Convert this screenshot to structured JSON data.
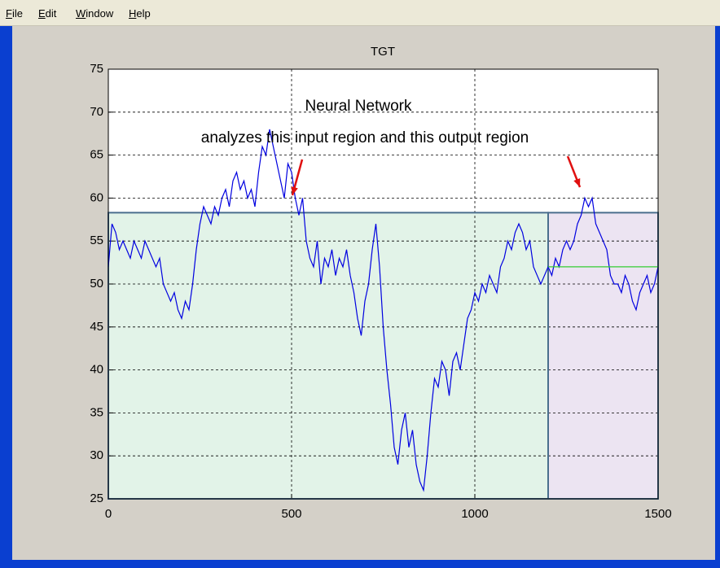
{
  "menu": [
    "File",
    "Edit",
    "Window",
    "Help"
  ],
  "chart_data": {
    "type": "line",
    "title": "TGT",
    "xlim": [
      0,
      1500
    ],
    "xticks": [
      0,
      500,
      1000,
      1500
    ],
    "ylim": [
      25,
      75
    ],
    "yticks": [
      25,
      30,
      35,
      40,
      45,
      50,
      55,
      60,
      65,
      70,
      75
    ],
    "grid": true,
    "annotations": [
      "Neural Network",
      "analyzes this input region and this output region"
    ],
    "regions": [
      {
        "x": [
          0,
          1200
        ],
        "y": [
          25,
          58.3
        ],
        "color": "#e2f3e8"
      },
      {
        "x": [
          1200,
          1500
        ],
        "y": [
          25,
          58.3
        ],
        "color": "#ece4f2"
      }
    ],
    "series": [
      {
        "color": "#0000e0",
        "x": [
          0,
          10,
          20,
          30,
          40,
          50,
          60,
          70,
          80,
          90,
          100,
          110,
          120,
          130,
          140,
          150,
          160,
          170,
          180,
          190,
          200,
          210,
          220,
          230,
          240,
          250,
          260,
          270,
          280,
          290,
          300,
          310,
          320,
          330,
          340,
          350,
          360,
          370,
          380,
          390,
          400,
          410,
          420,
          430,
          440,
          450,
          460,
          470,
          480,
          490,
          500,
          510,
          520,
          530,
          540,
          550,
          560,
          570,
          580,
          590,
          600,
          610,
          620,
          630,
          640,
          650,
          660,
          670,
          680,
          690,
          700,
          710,
          720,
          730,
          740,
          750,
          760,
          770,
          780,
          790,
          800,
          810,
          820,
          830,
          840,
          850,
          860,
          870,
          880,
          890,
          900,
          910,
          920,
          930,
          940,
          950,
          960,
          970,
          980,
          990,
          1000,
          1010,
          1020,
          1030,
          1040,
          1050,
          1060,
          1070,
          1080,
          1090,
          1100,
          1110,
          1120,
          1130,
          1140,
          1150,
          1160,
          1170,
          1180,
          1190,
          1200,
          1210,
          1220,
          1230,
          1240,
          1250,
          1260,
          1270,
          1280,
          1290,
          1300,
          1310,
          1320,
          1330,
          1340,
          1350,
          1360,
          1370,
          1380,
          1390,
          1400,
          1410,
          1420,
          1430,
          1440,
          1450,
          1460,
          1470,
          1480,
          1490,
          1500
        ],
        "values": [
          52,
          57,
          56,
          54,
          55,
          54,
          53,
          55,
          54,
          53,
          55,
          54,
          53,
          52,
          53,
          50,
          49,
          48,
          49,
          47,
          46,
          48,
          47,
          50,
          54,
          57,
          59,
          58,
          57,
          59,
          58,
          60,
          61,
          59,
          62,
          63,
          61,
          62,
          60,
          61,
          59,
          63,
          66,
          65,
          68,
          66,
          64,
          62,
          60,
          64,
          63,
          60,
          58,
          60,
          55,
          53,
          52,
          55,
          50,
          53,
          52,
          54,
          51,
          53,
          52,
          54,
          51,
          49,
          46,
          44,
          48,
          50,
          54,
          57,
          52,
          45,
          40,
          36,
          31,
          29,
          33,
          35,
          31,
          33,
          29,
          27,
          26,
          30,
          35,
          39,
          38,
          41,
          40,
          37,
          41,
          42,
          40,
          43,
          46,
          47,
          49,
          48,
          50,
          49,
          51,
          50,
          49,
          52,
          53,
          55,
          54,
          56,
          57,
          56,
          54,
          55,
          52,
          51,
          50,
          51,
          52,
          51,
          53,
          52,
          54,
          55,
          54,
          55,
          57,
          58,
          60,
          59,
          60,
          57,
          56,
          55,
          54,
          51,
          50,
          50,
          49,
          51,
          50,
          48,
          47,
          49,
          50,
          51,
          49,
          50,
          52
        ]
      },
      {
        "color": "#33cc33",
        "x": [
          1200,
          1500
        ],
        "values": [
          52,
          52
        ]
      }
    ]
  }
}
